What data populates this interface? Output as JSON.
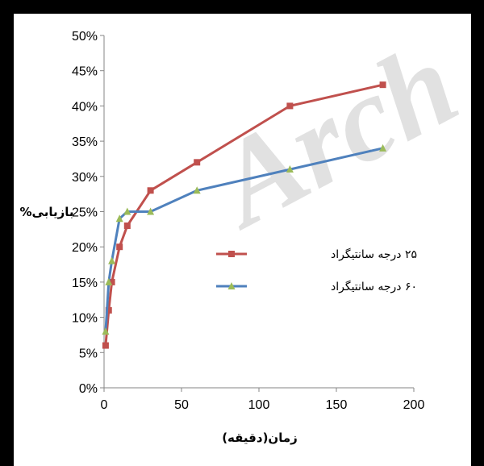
{
  "chart_data": {
    "type": "line",
    "xlabel": "زمان(دقیقه)",
    "ylabel": "بازیابی%",
    "xlim": [
      0,
      200
    ],
    "ylim": [
      0,
      0.5
    ],
    "x_ticks": [
      "0",
      "50",
      "100",
      "150",
      "200"
    ],
    "y_ticks": [
      "0%",
      "5%",
      "10%",
      "15%",
      "20%",
      "25%",
      "30%",
      "35%",
      "40%",
      "45%",
      "50%"
    ],
    "grid": false,
    "legend_position": "right",
    "watermark": "Arch",
    "series": [
      {
        "name": "۲۵ درجه سانتیگراد",
        "color": "#c0504d",
        "marker": "square",
        "x": [
          1,
          3,
          5,
          10,
          15,
          30,
          60,
          120,
          180
        ],
        "y": [
          0.06,
          0.11,
          0.15,
          0.2,
          0.23,
          0.28,
          0.32,
          0.4,
          0.43
        ]
      },
      {
        "name": "۶۰ درجه سانتیگراد",
        "color": "#4f81bd",
        "marker_color": "#9bbb59",
        "marker": "triangle",
        "x": [
          1,
          3,
          5,
          10,
          15,
          30,
          60,
          120,
          180
        ],
        "y": [
          0.08,
          0.15,
          0.18,
          0.24,
          0.25,
          0.25,
          0.28,
          0.31,
          0.34
        ]
      }
    ]
  }
}
